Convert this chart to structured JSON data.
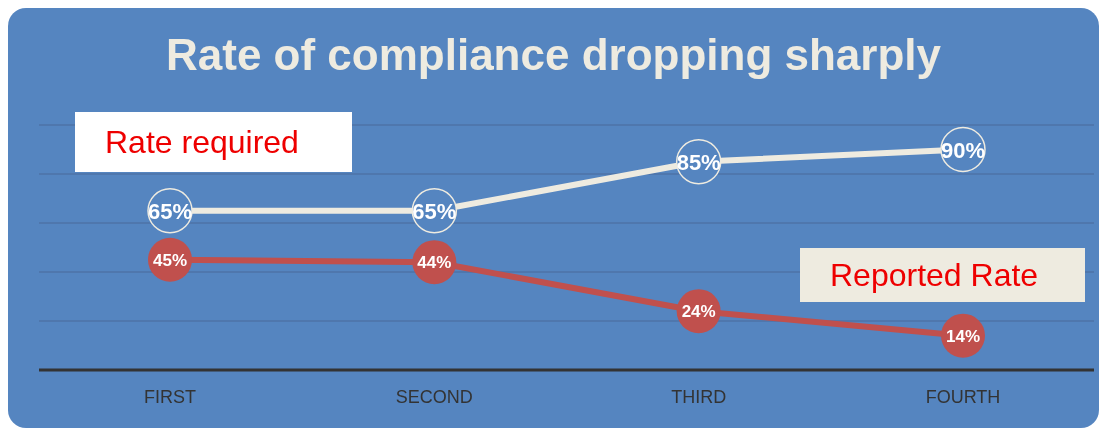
{
  "chart_data": {
    "type": "line",
    "title": "Rate of compliance dropping sharply",
    "categories": [
      "FIRST",
      "SECOND",
      "THIRD",
      "FOURTH"
    ],
    "series": [
      {
        "name": "Rate required",
        "color": "#eeebe0",
        "values": [
          65,
          65,
          85,
          90
        ],
        "value_labels": [
          "65%",
          "65%",
          "85%",
          "90%"
        ]
      },
      {
        "name": "Reported Rate",
        "color": "#c0504d",
        "values": [
          45,
          44,
          24,
          14
        ],
        "value_labels": [
          "45%",
          "44%",
          "24%",
          "14%"
        ]
      }
    ],
    "ylim": [
      0,
      100
    ],
    "yticks": [
      {
        "value": 0,
        "label": null
      },
      {
        "value": 20,
        "label": null
      },
      {
        "value": 40,
        "label": null
      },
      {
        "value": 60,
        "label": null
      },
      {
        "value": 80,
        "label": null
      },
      {
        "value": 100,
        "label": null
      }
    ],
    "grid": "y",
    "marker": "circle",
    "tick_labels": "x",
    "line_style": "solid"
  }
}
